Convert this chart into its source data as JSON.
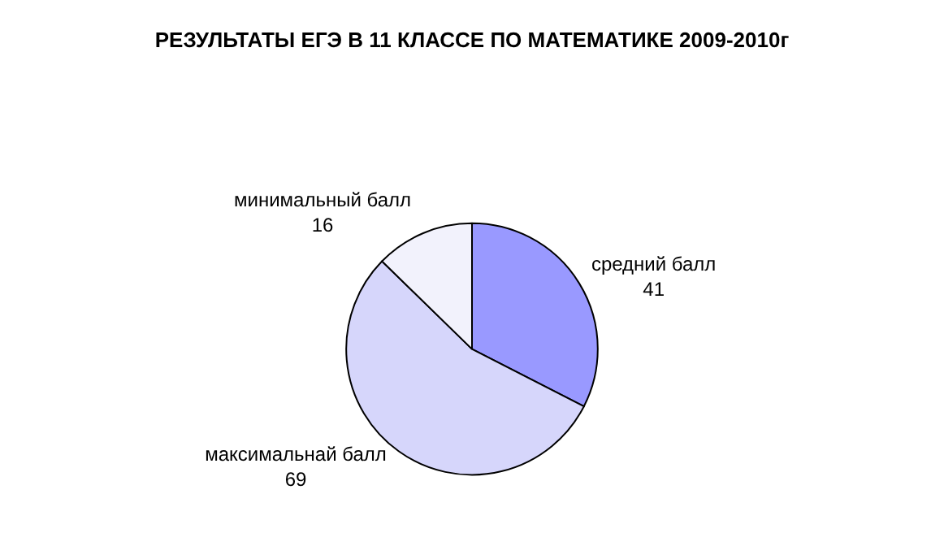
{
  "chart_data": {
    "type": "pie",
    "title": "РЕЗУЛЬТАТЫ ЕГЭ В 11 КЛАССЕ ПО МАТЕМАТИКЕ 2009-2010г",
    "categories": [
      "средний балл",
      "максимальнай балл",
      "минимальный балл"
    ],
    "values": [
      41,
      69,
      16
    ],
    "colors": [
      "#9999ff",
      "#d6d6fb",
      "#f2f2fc"
    ],
    "data_labels": true,
    "legend": false
  }
}
